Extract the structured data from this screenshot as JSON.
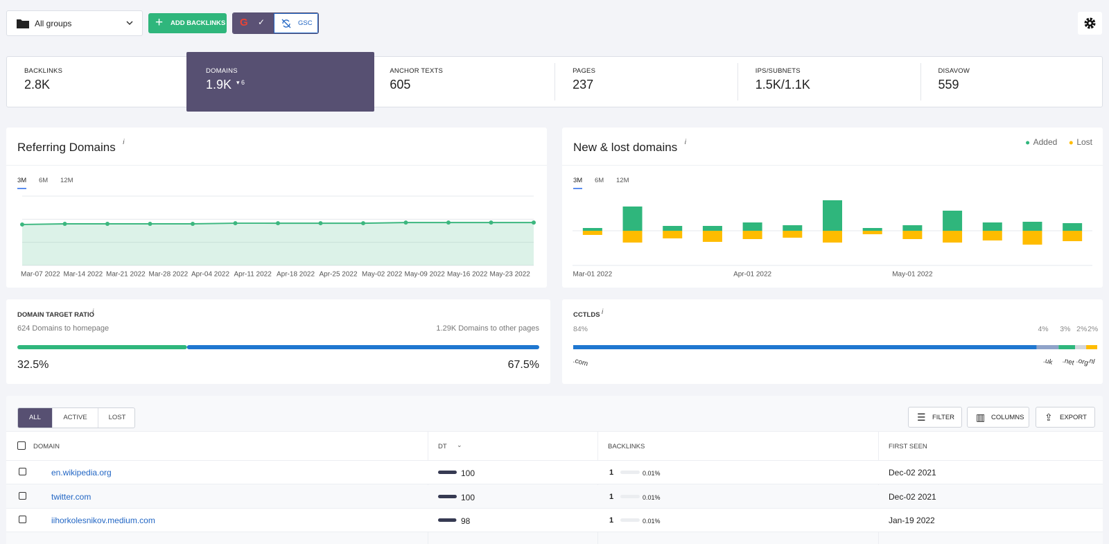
{
  "toolbar": {
    "group": "All groups",
    "add_button": "ADD BACKLINKS",
    "gsc": "GSC"
  },
  "stats": [
    {
      "label": "BACKLINKS",
      "value": "2.8K"
    },
    {
      "label": "DOMAINS",
      "value": "1.9K",
      "change": 6
    },
    {
      "label": "ANCHOR TEXTS",
      "value": "605"
    },
    {
      "label": "PAGES",
      "value": "237"
    },
    {
      "label": "IPS/SUBNETS",
      "value": "1.5K/1.1K"
    },
    {
      "label": "DISAVOW",
      "value": "559"
    }
  ],
  "active_stat": 1,
  "chart_data": [
    {
      "type": "line",
      "title": "Referring Domains",
      "info": "i",
      "periods": [
        "3M",
        "6M",
        "12M"
      ],
      "categories": [
        "Mar-07 2022",
        "Mar-14 2022",
        "Mar-21 2022",
        "Mar-28 2022",
        "Apr-04 2022",
        "Apr-11 2022",
        "Apr-18 2022",
        "Apr-25 2022",
        "May-02 2022",
        "May-09 2022",
        "May-16 2022",
        "May-23 2022",
        null
      ],
      "values": [
        1890,
        1920,
        1920,
        1920,
        1920,
        1950,
        1950,
        1950,
        1950,
        1980,
        1980,
        1980,
        1980
      ],
      "color": "#3cb77f",
      "ylim": [
        0,
        3200
      ],
      "grid": true
    },
    {
      "type": "bar",
      "title": "New & lost domains",
      "info": "i",
      "periods": [
        "3M",
        "6M",
        "12M"
      ],
      "categories": [
        "Mar-01 2022",
        null,
        null,
        null,
        "Apr-01 2022",
        null,
        null,
        null,
        "May-01 2022",
        null,
        null,
        null,
        null
      ],
      "series": [
        {
          "name": "Added",
          "color": "#2fb67c",
          "values": [
            4,
            35,
            7,
            7,
            12,
            8,
            44,
            4,
            8,
            29,
            12,
            13,
            11
          ]
        },
        {
          "name": "Lost",
          "color": "#ffbc00",
          "values": [
            -6,
            -17,
            -11,
            -16,
            -12,
            -10,
            -17,
            -5,
            -12,
            -17,
            -14,
            -20,
            -15
          ]
        }
      ],
      "ylim": [
        -50,
        50
      ],
      "legend": "top-right"
    }
  ],
  "ratio": {
    "title": "DOMAIN TARGET RATIO",
    "info": "i",
    "left": "624 Domains to homepage",
    "right": "1.29K Domains to other pages",
    "values": [
      32.5,
      67.5
    ],
    "value_labels": [
      "32.5%",
      "67.5%"
    ],
    "colors": [
      "#2fb67c",
      "#1f77d0"
    ]
  },
  "cctlds": {
    "title": "CCTLDS",
    "info": "i",
    "categories": [
      ".com",
      ".uk",
      ".net",
      ".org",
      ".nl"
    ],
    "values": [
      84,
      4,
      3,
      2,
      2
    ],
    "value_labels": [
      "84%",
      "4%",
      "3%",
      "2%",
      "2%"
    ],
    "colors": [
      "#1f77d0",
      "#8fa3c9",
      "#2fb67c",
      "#d3d6dc",
      "#ffbc00"
    ]
  },
  "table": {
    "tabs": [
      "ALL",
      "ACTIVE",
      "LOST"
    ],
    "active_tab": 0,
    "buttons": [
      "FILTER",
      "COLUMNS",
      "EXPORT"
    ],
    "columns": [
      "DOMAIN",
      "DT",
      "BACKLINKS",
      "FIRST SEEN"
    ],
    "rows": [
      {
        "domain": "en.wikipedia.org",
        "dt": 100,
        "backlinks": 1,
        "share": 0.01,
        "share_label": "0.01%",
        "first_seen": "Dec-02 2021"
      },
      {
        "domain": "twitter.com",
        "dt": 100,
        "backlinks": 1,
        "share": 0.01,
        "share_label": "0.01%",
        "first_seen": "Dec-02 2021"
      },
      {
        "domain": "iihorkolesnikov.medium.com",
        "dt": 98,
        "backlinks": 1,
        "share": 0.01,
        "share_label": "0.01%",
        "first_seen": "Jan-19 2022"
      }
    ]
  }
}
